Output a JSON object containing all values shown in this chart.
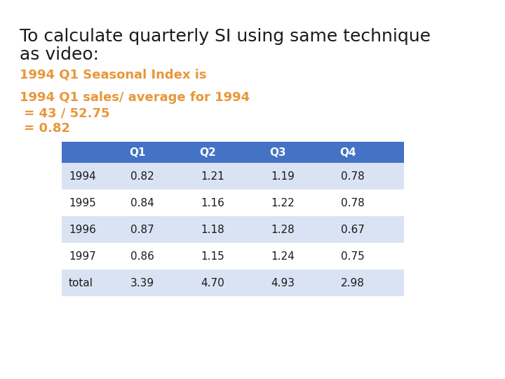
{
  "title_line1": "To calculate quarterly SI using same technique",
  "title_line2": "as video:",
  "subtitle1": "1994 Q1 Seasonal Index is",
  "subtitle2": "1994 Q1 sales/ average for 1994",
  "subtitle3": " = 43 / 52.75",
  "subtitle4": " = 0.82",
  "orange_color": "#E8973A",
  "black_color": "#1a1a1a",
  "header_bg": "#4472C4",
  "header_text": "#FFFFFF",
  "row_bg_odd": "#DAE3F3",
  "row_bg_even": "#FFFFFF",
  "table_headers": [
    "",
    "Q1",
    "Q2",
    "Q3",
    "Q4"
  ],
  "table_rows": [
    [
      "1994",
      "0.82",
      "1.21",
      "1.19",
      "0.78"
    ],
    [
      "1995",
      "0.84",
      "1.16",
      "1.22",
      "0.78"
    ],
    [
      "1996",
      "0.87",
      "1.18",
      "1.28",
      "0.67"
    ],
    [
      "1997",
      "0.86",
      "1.15",
      "1.24",
      "0.75"
    ],
    [
      "total",
      "3.39",
      "4.70",
      "4.93",
      "2.98"
    ]
  ],
  "background_color": "#FFFFFF",
  "title_fontsize": 18,
  "subtitle_fontsize": 13,
  "table_fontsize": 11
}
